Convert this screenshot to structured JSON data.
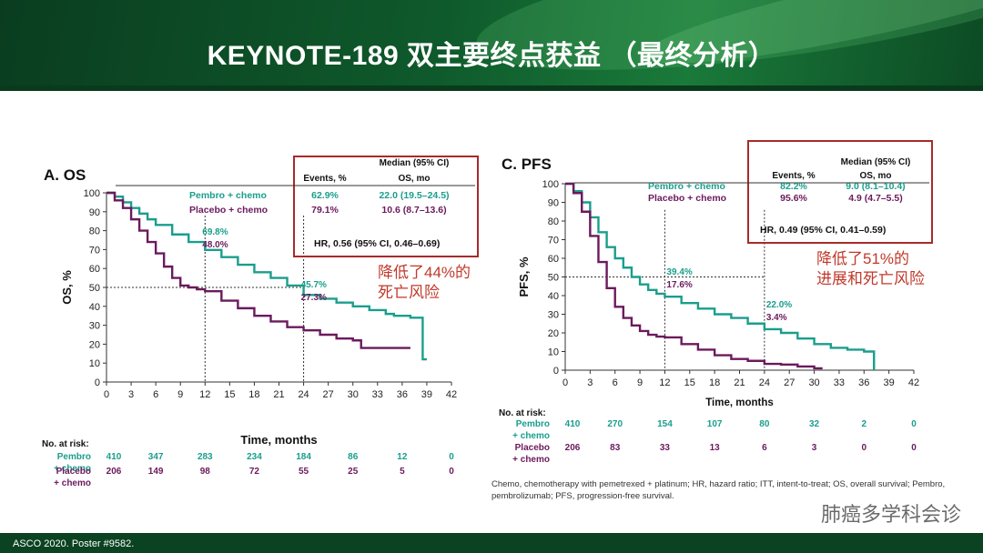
{
  "header": {
    "title": "KEYNOTE-189 双主要终点获益  （最终分析）"
  },
  "footer": {
    "citation": "ASCO 2020. Poster #9582."
  },
  "watermark": "肺癌多学科会诊",
  "footnote": "Chemo, chemotherapy with pemetrexed + platinum; HR, hazard ratio; ITT, intent-to-treat; OS, overall survival; Pembro, pembrolizumab; PFS, progression-free survival.",
  "colors": {
    "pembro": "#1a9e8c",
    "placebo": "#6b1a5c",
    "highlight": "#c0392b",
    "banner": "#0f5a2c"
  },
  "chart_data": [
    {
      "type": "line",
      "panel": "A.  OS",
      "xlabel": "Time, months",
      "ylabel": "OS, %",
      "xlim": [
        0,
        42
      ],
      "ylim": [
        0,
        100
      ],
      "xticks": [
        0,
        3,
        6,
        9,
        12,
        15,
        18,
        21,
        24,
        27,
        30,
        33,
        36,
        39,
        42
      ],
      "yticks": [
        0,
        10,
        20,
        30,
        40,
        50,
        60,
        70,
        80,
        90,
        100
      ],
      "table_header": {
        "events": "Events, %",
        "median": "Median (95% CI)",
        "median2": "OS, mo"
      },
      "series": [
        {
          "name": "Pembro + chemo",
          "events": "62.9%",
          "median": "22.0 (19.5–24.5)",
          "x": [
            0,
            1,
            2,
            3,
            4,
            5,
            6,
            8,
            10,
            12,
            14,
            16,
            18,
            20,
            22,
            24,
            26,
            28,
            30,
            32,
            34,
            35,
            36,
            37,
            38,
            38.5,
            39
          ],
          "y": [
            100,
            98,
            95,
            92,
            89,
            86,
            83,
            78,
            74,
            69.8,
            66,
            62,
            58,
            55,
            51,
            46,
            44,
            42,
            40,
            38,
            36,
            35,
            35,
            34,
            34,
            12,
            12
          ]
        },
        {
          "name": "Placebo + chemo",
          "events": "79.1%",
          "median": "10.6 (8.7–13.6)",
          "x": [
            0,
            1,
            2,
            3,
            4,
            5,
            6,
            7,
            8,
            9,
            10,
            11,
            12,
            14,
            16,
            18,
            20,
            22,
            24,
            26,
            28,
            30,
            31,
            33,
            36,
            37
          ],
          "y": [
            100,
            96,
            92,
            86,
            80,
            74,
            68,
            61,
            55,
            51,
            50,
            49,
            48,
            43,
            39,
            35,
            32,
            29,
            27.3,
            25,
            23,
            22,
            18,
            18,
            18,
            18
          ]
        }
      ],
      "annotations": [
        {
          "x": 12,
          "pembro": "69.8%",
          "placebo": "48.0%"
        },
        {
          "x": 24,
          "pembro": "45.7%",
          "placebo": "27.3%"
        }
      ],
      "hr": "HR, 0.56 (95% CI, 0.46–0.69)",
      "callout": [
        "降低了44%的",
        "死亡风险"
      ],
      "at_risk": {
        "title": "No. at risk:",
        "pembro": {
          "label": [
            "Pembro",
            "+ chemo"
          ],
          "values": [
            410,
            347,
            283,
            234,
            184,
            86,
            12,
            0
          ]
        },
        "placebo": {
          "label": [
            "Placebo",
            "+ chemo"
          ],
          "values": [
            206,
            149,
            98,
            72,
            55,
            25,
            5,
            0
          ]
        }
      }
    },
    {
      "type": "line",
      "panel": "C.  PFS",
      "xlabel": "Time, months",
      "ylabel": "PFS, %",
      "xlim": [
        0,
        42
      ],
      "ylim": [
        0,
        100
      ],
      "xticks": [
        0,
        3,
        6,
        9,
        12,
        15,
        18,
        21,
        24,
        27,
        30,
        33,
        36,
        39,
        42
      ],
      "yticks": [
        0,
        10,
        20,
        30,
        40,
        50,
        60,
        70,
        80,
        90,
        100
      ],
      "table_header": {
        "events": "Events, %",
        "median": "Median (95% CI)",
        "median2": "OS, mo"
      },
      "series": [
        {
          "name": "Pembro + chemo",
          "events": "82.2%",
          "median": "9.0 (8.1–10.4)",
          "x": [
            0,
            1,
            2,
            3,
            4,
            5,
            6,
            7,
            8,
            9,
            10,
            11,
            12,
            14,
            16,
            18,
            20,
            22,
            24,
            26,
            28,
            30,
            32,
            34,
            36,
            37,
            37.2
          ],
          "y": [
            100,
            96,
            90,
            82,
            74,
            66,
            60,
            55,
            50,
            46,
            43,
            41,
            39.4,
            36,
            33,
            30,
            28,
            25,
            22,
            20,
            17,
            14,
            12,
            11,
            10,
            10,
            0
          ]
        },
        {
          "name": "Placebo + chemo",
          "events": "95.6%",
          "median": "4.9 (4.7–5.5)",
          "x": [
            0,
            1,
            2,
            3,
            4,
            5,
            6,
            7,
            8,
            9,
            10,
            11,
            12,
            14,
            16,
            18,
            20,
            22,
            24,
            26,
            28,
            30,
            31
          ],
          "y": [
            100,
            95,
            85,
            72,
            58,
            44,
            34,
            28,
            24,
            21,
            19,
            18,
            17.6,
            14,
            11,
            8,
            6,
            5,
            3.4,
            3,
            2,
            1,
            1
          ]
        }
      ],
      "annotations": [
        {
          "x": 12,
          "pembro": "39.4%",
          "placebo": "17.6%"
        },
        {
          "x": 24,
          "pembro": "22.0%",
          "placebo": "3.4%"
        }
      ],
      "hr": "HR, 0.49 (95% CI, 0.41–0.59)",
      "callout": [
        "降低了51%的",
        "进展和死亡风险"
      ],
      "at_risk": {
        "title": "No. at risk:",
        "pembro": {
          "label": [
            "Pembro",
            "+ chemo"
          ],
          "values": [
            410,
            270,
            154,
            107,
            80,
            32,
            2,
            0
          ]
        },
        "placebo": {
          "label": [
            "Placebo",
            "+ chemo"
          ],
          "values": [
            206,
            83,
            33,
            13,
            6,
            3,
            0,
            0
          ]
        }
      }
    }
  ]
}
